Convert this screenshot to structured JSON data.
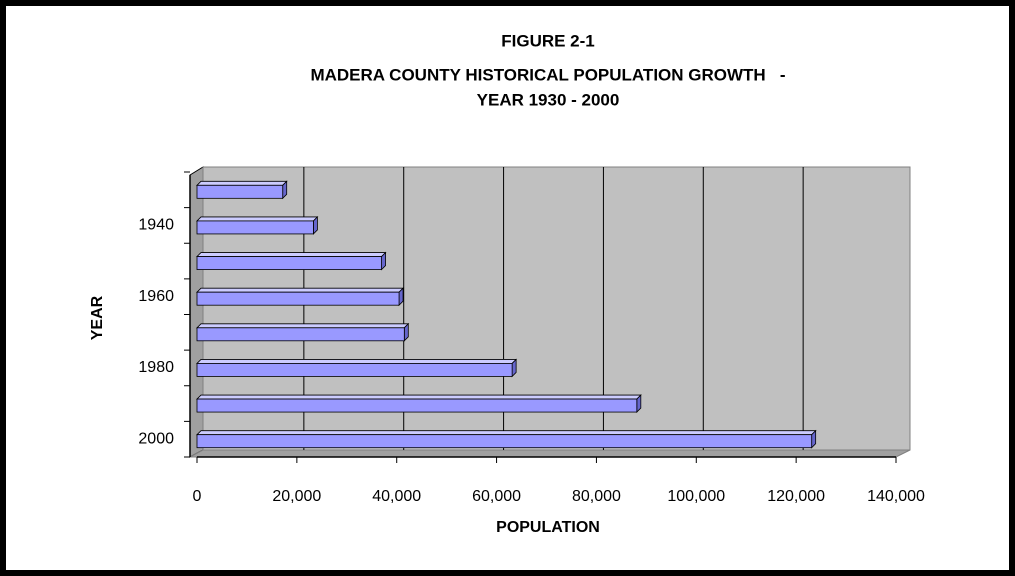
{
  "chart_data": {
    "type": "bar",
    "orientation": "horizontal",
    "title": [
      "FIGURE 2-1",
      "MADERA COUNTY HISTORICAL POPULATION GROWTH   -",
      "YEAR 1930 - 2000"
    ],
    "x_label": "POPULATION",
    "y_label": "YEAR",
    "categories": [
      null,
      "1940",
      null,
      "1960",
      null,
      "1980",
      null,
      "2000"
    ],
    "values": [
      17164,
      23314,
      36964,
      40468,
      41519,
      63116,
      88090,
      123109
    ],
    "color": "#9999ff",
    "xlim": [
      0,
      140000
    ],
    "xticks": [
      0,
      {
        "value": 20000,
        "label": "20,000"
      },
      {
        "value": 40000,
        "label": "40,000"
      },
      {
        "value": 60000,
        "label": "60,000"
      },
      {
        "value": 80000,
        "label": "80,000"
      },
      {
        "value": 100000,
        "label": "100,000"
      },
      {
        "value": 120000,
        "label": "120,000"
      },
      {
        "value": 140000,
        "label": "140,000"
      }
    ],
    "grid": true
  }
}
